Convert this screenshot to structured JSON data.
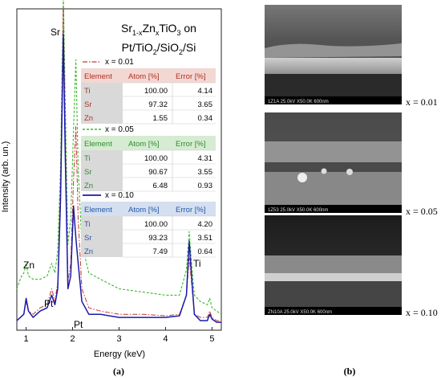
{
  "panel_a": {
    "label": "(a)",
    "title_line1": {
      "base": "Sr",
      "sub1": "1-x",
      "mid": "Zn",
      "sub2": "x",
      "end": "TiO",
      "sub3": "3",
      "tail": " on"
    },
    "title_line2": {
      "p1": "Pt/TiO",
      "s1": "2",
      "p2": "/SiO",
      "s2": "2",
      "p3": "/Si"
    },
    "peak_labels": {
      "sr": "Sr",
      "zn": "Zn",
      "pt1": "Pt",
      "pt2": "Pt",
      "ti": "Ti"
    },
    "tables": [
      {
        "legend": "x = 0.01",
        "color": "#c0392b",
        "dash": "6,2,1.5,2",
        "headers": [
          "Element",
          "Atom [%]",
          "Error [%]"
        ],
        "rows": [
          [
            "Ti",
            "100.00",
            "4.14"
          ],
          [
            "Sr",
            "97.32",
            "3.65"
          ],
          [
            "Zn",
            "1.55",
            "0.34"
          ]
        ]
      },
      {
        "legend": "x = 0.05",
        "color": "#3db82f",
        "dash": "3,2",
        "headers": [
          "Element",
          "Atom [%]",
          "Error [%]"
        ],
        "rows": [
          [
            "Ti",
            "100.00",
            "4.31"
          ],
          [
            "Sr",
            "90.67",
            "3.55"
          ],
          [
            "Zn",
            "6.48",
            "0.93"
          ]
        ]
      },
      {
        "legend": "x = 0.10",
        "color": "#1a1aaa",
        "dash": "",
        "headers": [
          "Element",
          "Atom [%]",
          "Error [%]"
        ],
        "rows": [
          [
            "Ti",
            "100.00",
            "4.20"
          ],
          [
            "Sr",
            "93.23",
            "3.51"
          ],
          [
            "Zn",
            "7.49",
            "0.64"
          ]
        ]
      }
    ]
  },
  "chart_data": {
    "type": "line",
    "xlabel": "Energy (keV)",
    "ylabel": "Intensity (arb. un.)",
    "xlim": [
      0.8,
      5.2
    ],
    "ylim": [
      0,
      1
    ],
    "xticks": [
      1,
      2,
      3,
      4,
      5
    ],
    "series": [
      {
        "name": "x = 0.01",
        "color": "#c0392b",
        "x": [
          0.8,
          0.95,
          1.0,
          1.05,
          1.15,
          1.3,
          1.45,
          1.55,
          1.62,
          1.68,
          1.74,
          1.8,
          1.84,
          1.9,
          1.96,
          2.02,
          2.07,
          2.12,
          2.2,
          2.35,
          2.6,
          3.0,
          3.5,
          4.0,
          4.3,
          4.45,
          4.51,
          4.56,
          4.62,
          4.75,
          4.9,
          4.95,
          5.0,
          5.1,
          5.2
        ],
        "y": [
          0.02,
          0.04,
          0.08,
          0.05,
          0.04,
          0.06,
          0.07,
          0.12,
          0.08,
          0.14,
          0.45,
          1.0,
          0.62,
          0.14,
          0.2,
          0.46,
          0.63,
          0.34,
          0.12,
          0.06,
          0.05,
          0.04,
          0.04,
          0.035,
          0.04,
          0.1,
          0.22,
          0.14,
          0.04,
          0.03,
          0.03,
          0.05,
          0.03,
          0.02,
          0.02
        ]
      },
      {
        "name": "x = 0.05",
        "color": "#3db82f",
        "x": [
          0.8,
          0.9,
          0.95,
          1.0,
          1.05,
          1.15,
          1.3,
          1.45,
          1.55,
          1.62,
          1.68,
          1.74,
          1.8,
          1.84,
          1.9,
          1.96,
          2.02,
          2.07,
          2.12,
          2.2,
          2.35,
          2.6,
          3.0,
          3.5,
          4.0,
          4.3,
          4.45,
          4.51,
          4.56,
          4.62,
          4.75,
          4.9,
          4.95,
          5.0,
          5.1,
          5.2
        ],
        "y": [
          0.12,
          0.16,
          0.17,
          0.2,
          0.16,
          0.15,
          0.15,
          0.16,
          0.2,
          0.17,
          0.24,
          0.5,
          1.05,
          0.72,
          0.26,
          0.34,
          0.62,
          0.84,
          0.5,
          0.26,
          0.17,
          0.15,
          0.12,
          0.11,
          0.1,
          0.1,
          0.18,
          0.3,
          0.2,
          0.1,
          0.08,
          0.07,
          0.09,
          0.06,
          0.05,
          0.04
        ]
      },
      {
        "name": "x = 0.10",
        "color": "#1a1aaa",
        "x": [
          0.8,
          0.95,
          1.0,
          1.05,
          1.15,
          1.3,
          1.45,
          1.55,
          1.62,
          1.68,
          1.74,
          1.8,
          1.84,
          1.9,
          1.96,
          2.02,
          2.07,
          2.12,
          2.2,
          2.35,
          2.6,
          3.0,
          3.5,
          4.0,
          4.3,
          4.45,
          4.51,
          4.56,
          4.62,
          4.75,
          4.9,
          4.95,
          5.0,
          5.1,
          5.2
        ],
        "y": [
          0.02,
          0.04,
          0.09,
          0.05,
          0.03,
          0.05,
          0.06,
          0.1,
          0.07,
          0.12,
          0.4,
          0.92,
          0.55,
          0.12,
          0.16,
          0.38,
          0.28,
          0.2,
          0.08,
          0.04,
          0.04,
          0.03,
          0.03,
          0.03,
          0.035,
          0.1,
          0.27,
          0.16,
          0.04,
          0.02,
          0.02,
          0.04,
          0.025,
          0.015,
          0.015
        ]
      }
    ]
  },
  "panel_b": {
    "label": "(b)",
    "images": [
      {
        "caption": "x = 0.01",
        "scale_text": "1Z1A   25.0kV  X50.0K   600nm"
      },
      {
        "caption": "x = 0.05",
        "scale_text": "1Z53   25.0kV  X50.0K   600nm"
      },
      {
        "caption": "x = 0.10",
        "scale_text": "ZN10A  25.0kV  X50.0K   600nm"
      }
    ]
  }
}
